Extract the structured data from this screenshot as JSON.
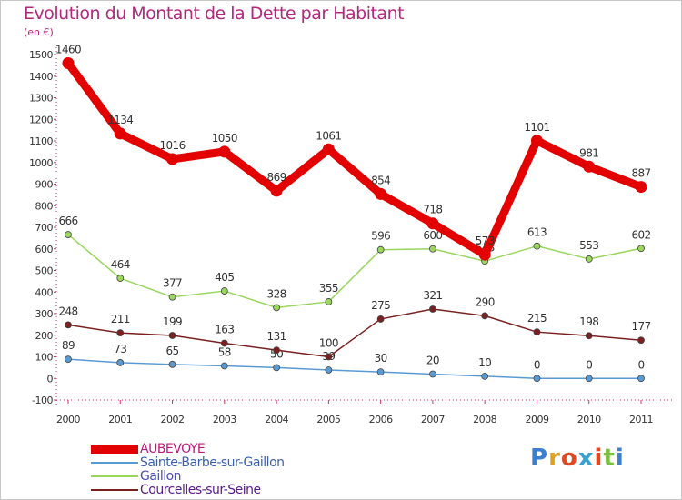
{
  "title": "Evolution du Montant de la Dette par Habitant",
  "unit": "(en €)",
  "chart_data": {
    "type": "line",
    "x": [
      "2000",
      "2001",
      "2002",
      "2003",
      "2004",
      "2005",
      "2006",
      "2007",
      "2008",
      "2009",
      "2010",
      "2011"
    ],
    "ylim": [
      -100,
      1500
    ],
    "yticks": [
      -100,
      0,
      100,
      200,
      300,
      400,
      500,
      600,
      700,
      800,
      900,
      1000,
      1100,
      1200,
      1300,
      1400,
      1500
    ],
    "grid": false,
    "legend_position": "bottom-left",
    "series": [
      {
        "name": "AUBEVOYE",
        "color": "#e30000",
        "values": [
          1460,
          1134,
          1016,
          1050,
          869,
          1061,
          854,
          718,
          573,
          1101,
          981,
          887
        ]
      },
      {
        "name": "Sainte-Barbe-sur-Gaillon",
        "color": "#5a9ad2",
        "values": [
          89,
          73,
          65,
          58,
          50,
          39,
          30,
          20,
          10,
          0,
          0,
          0
        ]
      },
      {
        "name": "Gaillon",
        "color": "#9ad65e",
        "values": [
          666,
          464,
          377,
          405,
          328,
          355,
          596,
          600,
          543,
          613,
          553,
          602
        ]
      },
      {
        "name": "Courcelles-sur-Seine",
        "color": "#7a2020",
        "values": [
          248,
          211,
          199,
          163,
          131,
          100,
          275,
          321,
          290,
          215,
          198,
          177
        ]
      }
    ]
  },
  "logo": {
    "letters": [
      "P",
      "r",
      "o",
      "x",
      "i",
      "t",
      "i"
    ],
    "colors": [
      "#3a7fd0",
      "#e0a020",
      "#e04a20",
      "#3aa0d0",
      "#e04a20",
      "#7ac040",
      "#3a7fd0"
    ]
  }
}
